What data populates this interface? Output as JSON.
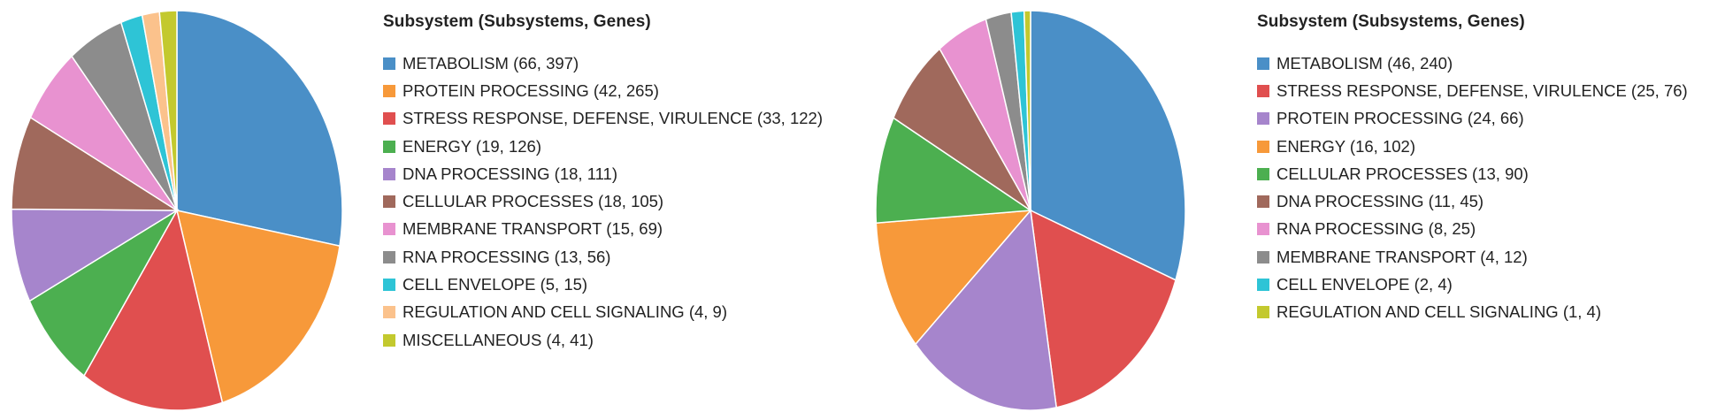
{
  "chart_data": [
    {
      "type": "pie",
      "legend_title": "Subsystem (Subsystems, Genes)",
      "slices": [
        {
          "label": "METABOLISM (66, 397)",
          "value": 66,
          "color": "#4a8fc7"
        },
        {
          "label": "PROTEIN PROCESSING (42, 265)",
          "value": 42,
          "color": "#f7993a"
        },
        {
          "label": "STRESS RESPONSE, DEFENSE, VIRULENCE (33, 122)",
          "value": 33,
          "color": "#e04f4f"
        },
        {
          "label": "ENERGY (19, 126)",
          "value": 19,
          "color": "#4caf50"
        },
        {
          "label": "DNA PROCESSING (18, 111)",
          "value": 18,
          "color": "#a685cc"
        },
        {
          "label": "CELLULAR PROCESSES (18, 105)",
          "value": 18,
          "color": "#a0695c"
        },
        {
          "label": "MEMBRANE TRANSPORT (15, 69)",
          "value": 15,
          "color": "#e892d0"
        },
        {
          "label": "RNA PROCESSING (13, 56)",
          "value": 13,
          "color": "#8c8c8c"
        },
        {
          "label": "CELL ENVELOPE (5, 15)",
          "value": 5,
          "color": "#2ec4d6"
        },
        {
          "label": "REGULATION AND CELL SIGNALING (4, 9)",
          "value": 4,
          "color": "#fbc28c"
        },
        {
          "label": "MISCELLANEOUS (4, 41)",
          "value": 4,
          "color": "#c3c92e"
        }
      ]
    },
    {
      "type": "pie",
      "legend_title": "Subsystem (Subsystems, Genes)",
      "slices": [
        {
          "label": "METABOLISM (46, 240)",
          "value": 46,
          "color": "#4a8fc7"
        },
        {
          "label": "STRESS RESPONSE, DEFENSE, VIRULENCE (25, 76)",
          "value": 25,
          "color": "#e04f4f"
        },
        {
          "label": "PROTEIN PROCESSING (24, 66)",
          "value": 24,
          "color": "#a685cc"
        },
        {
          "label": "ENERGY (16, 102)",
          "value": 16,
          "color": "#f7993a"
        },
        {
          "label": "CELLULAR PROCESSES (13, 90)",
          "value": 13,
          "color": "#4caf50"
        },
        {
          "label": "DNA PROCESSING (11, 45)",
          "value": 11,
          "color": "#a0695c"
        },
        {
          "label": "RNA PROCESSING (8, 25)",
          "value": 8,
          "color": "#e892d0"
        },
        {
          "label": "MEMBRANE TRANSPORT (4, 12)",
          "value": 4,
          "color": "#8c8c8c"
        },
        {
          "label": "CELL ENVELOPE (2, 4)",
          "value": 2,
          "color": "#2ec4d6"
        },
        {
          "label": "REGULATION AND CELL SIGNALING (1, 4)",
          "value": 1,
          "color": "#c3c92e"
        }
      ]
    }
  ]
}
